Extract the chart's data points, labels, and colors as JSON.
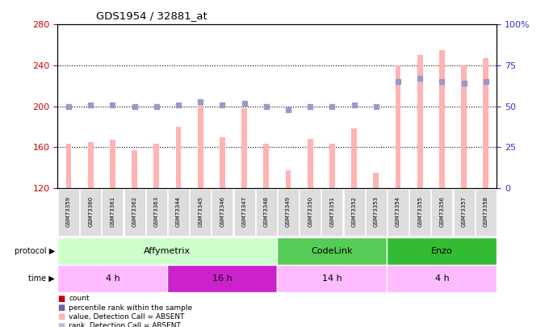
{
  "title": "GDS1954 / 32881_at",
  "samples": [
    "GSM73359",
    "GSM73360",
    "GSM73361",
    "GSM73362",
    "GSM73363",
    "GSM73344",
    "GSM73345",
    "GSM73346",
    "GSM73347",
    "GSM73348",
    "GSM73349",
    "GSM73350",
    "GSM73351",
    "GSM73352",
    "GSM73353",
    "GSM73354",
    "GSM73355",
    "GSM73356",
    "GSM73357",
    "GSM73358"
  ],
  "bar_values": [
    163,
    165,
    167,
    157,
    163,
    180,
    205,
    170,
    198,
    163,
    137,
    168,
    163,
    178,
    135,
    240,
    250,
    255,
    240,
    247
  ],
  "dot_values": [
    50,
    51,
    51,
    50,
    50,
    51,
    53,
    51,
    52,
    50,
    48,
    50,
    50,
    51,
    50,
    65,
    67,
    65,
    64,
    65
  ],
  "ylim_left": [
    120,
    280
  ],
  "ylim_right": [
    0,
    100
  ],
  "yticks_left": [
    120,
    160,
    200,
    240,
    280
  ],
  "yticks_right": [
    0,
    25,
    50,
    75,
    100
  ],
  "ytick_labels_right": [
    "0",
    "25",
    "50",
    "75",
    "100%"
  ],
  "bar_color": "#FFB3B3",
  "dot_color": "#9999CC",
  "protocol_bands": [
    {
      "label": "Affymetrix",
      "start": 0,
      "end": 10,
      "color": "#CCFFCC"
    },
    {
      "label": "CodeLink",
      "start": 10,
      "end": 15,
      "color": "#55CC55"
    },
    {
      "label": "Enzo",
      "start": 15,
      "end": 20,
      "color": "#33BB33"
    }
  ],
  "time_bands": [
    {
      "label": "4 h",
      "start": 0,
      "end": 5,
      "color": "#FFBBFF"
    },
    {
      "label": "16 h",
      "start": 5,
      "end": 10,
      "color": "#CC22CC"
    },
    {
      "label": "14 h",
      "start": 10,
      "end": 15,
      "color": "#FFBBFF"
    },
    {
      "label": "4 h",
      "start": 15,
      "end": 20,
      "color": "#FFBBFF"
    }
  ],
  "left_axis_color": "#CC0000",
  "right_axis_color": "#3333CC",
  "legend_items": [
    {
      "label": "count",
      "color": "#CC0000"
    },
    {
      "label": "percentile rank within the sample",
      "color": "#6666AA"
    },
    {
      "label": "value, Detection Call = ABSENT",
      "color": "#FFB3B3"
    },
    {
      "label": "rank, Detection Call = ABSENT",
      "color": "#BBBBDD"
    }
  ]
}
